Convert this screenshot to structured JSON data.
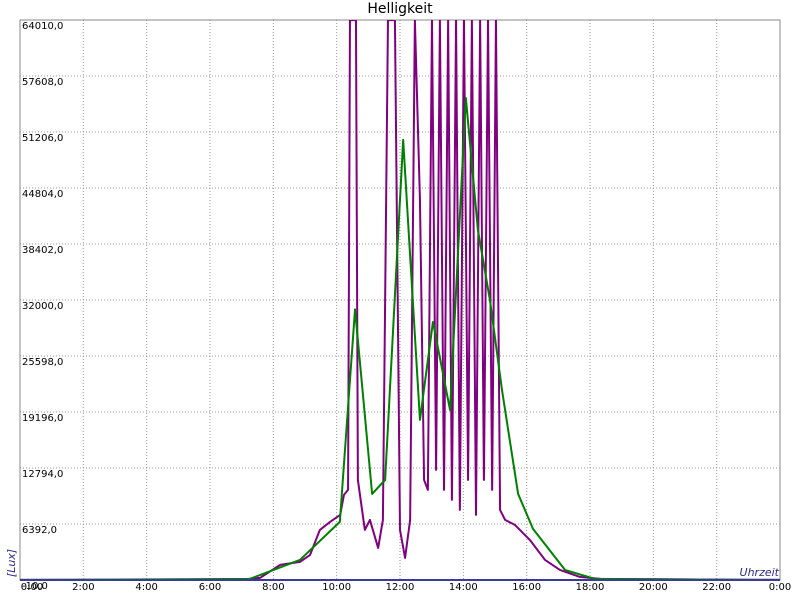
{
  "chart_data": {
    "type": "line",
    "title": "Helligkeit",
    "x_label": "Uhrzeit",
    "y_label": "[Lux]",
    "xlim": [
      0,
      24
    ],
    "ylim": [
      -10,
      64010
    ],
    "grid": true,
    "xticks": [
      {
        "value": 0,
        "label": "0:00"
      },
      {
        "value": 2,
        "label": "2:00"
      },
      {
        "value": 4,
        "label": "4:00"
      },
      {
        "value": 6,
        "label": "6:00"
      },
      {
        "value": 8,
        "label": "8:00"
      },
      {
        "value": 10,
        "label": "10:00"
      },
      {
        "value": 12,
        "label": "12:00"
      },
      {
        "value": 14,
        "label": "14:00"
      },
      {
        "value": 16,
        "label": "16:00"
      },
      {
        "value": 18,
        "label": "18:00"
      },
      {
        "value": 20,
        "label": "20:00"
      },
      {
        "value": 22,
        "label": "22:00"
      },
      {
        "value": 24,
        "label": "0:00"
      }
    ],
    "yticks": [
      {
        "value": -10,
        "label": "-10,0"
      },
      {
        "value": 6392,
        "label": "6392,0"
      },
      {
        "value": 12794,
        "label": "12794,0"
      },
      {
        "value": 19196,
        "label": "19196,0"
      },
      {
        "value": 25598,
        "label": "25598,0"
      },
      {
        "value": 32000,
        "label": "32000,0"
      },
      {
        "value": 38402,
        "label": "38402,0"
      },
      {
        "value": 44804,
        "label": "44804,0"
      },
      {
        "value": 51206,
        "label": "51206,0"
      },
      {
        "value": 57608,
        "label": "57608,0"
      },
      {
        "value": 64010,
        "label": "64010,0"
      }
    ],
    "series": [
      {
        "color": "#800080",
        "x": [
          0,
          6.8,
          7.58,
          8.21,
          8.84,
          9.16,
          9.47,
          9.79,
          10.11,
          10.23,
          10.36,
          10.42,
          10.61,
          10.67,
          10.89,
          11.05,
          11.31,
          11.46,
          11.62,
          11.84,
          12.0,
          12.16,
          12.32,
          12.47,
          12.63,
          12.76,
          12.88,
          13.01,
          13.14,
          13.26,
          13.39,
          13.52,
          13.64,
          13.77,
          13.89,
          14.02,
          14.15,
          14.27,
          14.4,
          14.53,
          14.65,
          14.78,
          14.91,
          15.03,
          15.16,
          15.32,
          15.63,
          16.1,
          16.58,
          17.05,
          17.68,
          18.32,
          24
        ],
        "values": [
          0,
          0,
          229,
          1714,
          2058,
          2858,
          5716,
          6631,
          7430,
          9716,
          10290,
          64000,
          64000,
          11430,
          5716,
          6860,
          3658,
          6860,
          64000,
          64000,
          5716,
          2515,
          6860,
          64000,
          43440,
          11430,
          10290,
          64000,
          12580,
          64000,
          10290,
          64000,
          9145,
          64000,
          8002,
          64000,
          11430,
          64000,
          7430,
          64000,
          11430,
          64000,
          10290,
          64000,
          8002,
          6860,
          6288,
          4573,
          2286,
          1143,
          343,
          114,
          0
        ]
      },
      {
        "color": "#008000",
        "x": [
          0,
          7.26,
          8.84,
          10.1,
          10.58,
          11.12,
          11.53,
          12.1,
          12.63,
          13.04,
          13.58,
          14.08,
          14.46,
          14.84,
          15.22,
          15.73,
          16.2,
          17.21,
          18.16,
          24
        ],
        "values": [
          0,
          114,
          2286,
          6631,
          30929,
          9831,
          11433,
          50300,
          18290,
          29490,
          19430,
          55100,
          40010,
          32000,
          21720,
          9830,
          5830,
          1143,
          114,
          0
        ]
      }
    ]
  }
}
